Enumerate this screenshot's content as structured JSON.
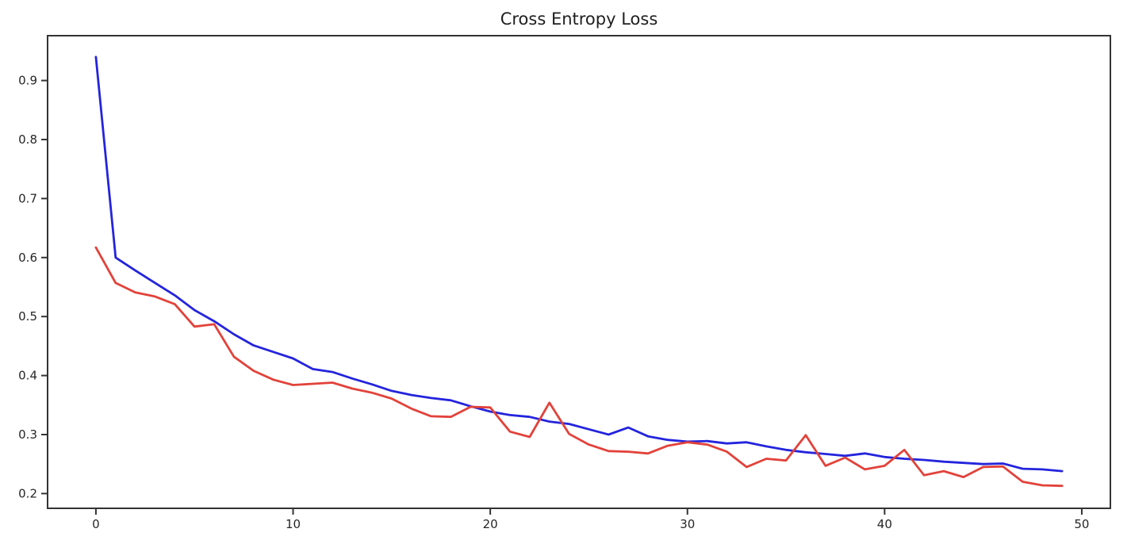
{
  "chart_data": {
    "type": "line",
    "title": "Cross Entropy Loss",
    "xlabel": "",
    "ylabel": "",
    "grid": false,
    "legend": "none",
    "xlim": [
      -2.45,
      51.45
    ],
    "ylim": [
      0.175,
      0.976
    ],
    "xticks": [
      0,
      10,
      20,
      30,
      40,
      50
    ],
    "yticks": [
      0.2,
      0.3,
      0.4,
      0.5,
      0.6,
      0.7,
      0.8,
      0.9
    ],
    "x": [
      0,
      1,
      2,
      3,
      4,
      5,
      6,
      7,
      8,
      9,
      10,
      11,
      12,
      13,
      14,
      15,
      16,
      17,
      18,
      19,
      20,
      21,
      22,
      23,
      24,
      25,
      26,
      27,
      28,
      29,
      30,
      31,
      32,
      33,
      34,
      35,
      36,
      37,
      38,
      39,
      40,
      41,
      42,
      43,
      44,
      45,
      46,
      47,
      48,
      49
    ],
    "series": [
      {
        "name": "blue",
        "color": "#2424dd",
        "values": [
          0.94,
          0.6,
          0.578,
          0.557,
          0.536,
          0.511,
          0.492,
          0.47,
          0.451,
          0.44,
          0.429,
          0.411,
          0.406,
          0.395,
          0.385,
          0.374,
          0.367,
          0.362,
          0.358,
          0.348,
          0.339,
          0.333,
          0.33,
          0.322,
          0.318,
          0.309,
          0.3,
          0.312,
          0.297,
          0.291,
          0.288,
          0.289,
          0.285,
          0.287,
          0.28,
          0.274,
          0.27,
          0.267,
          0.264,
          0.268,
          0.262,
          0.259,
          0.257,
          0.254,
          0.252,
          0.25,
          0.251,
          0.242,
          0.241,
          0.238
        ]
      },
      {
        "name": "red",
        "color": "#e2423a",
        "values": [
          0.617,
          0.557,
          0.541,
          0.534,
          0.521,
          0.483,
          0.487,
          0.432,
          0.408,
          0.393,
          0.384,
          0.386,
          0.388,
          0.378,
          0.371,
          0.361,
          0.344,
          0.331,
          0.33,
          0.347,
          0.346,
          0.305,
          0.296,
          0.354,
          0.301,
          0.283,
          0.272,
          0.271,
          0.268,
          0.281,
          0.287,
          0.283,
          0.271,
          0.245,
          0.259,
          0.256,
          0.299,
          0.247,
          0.261,
          0.241,
          0.247,
          0.274,
          0.231,
          0.238,
          0.228,
          0.245,
          0.246,
          0.22,
          0.214,
          0.213
        ]
      }
    ]
  }
}
